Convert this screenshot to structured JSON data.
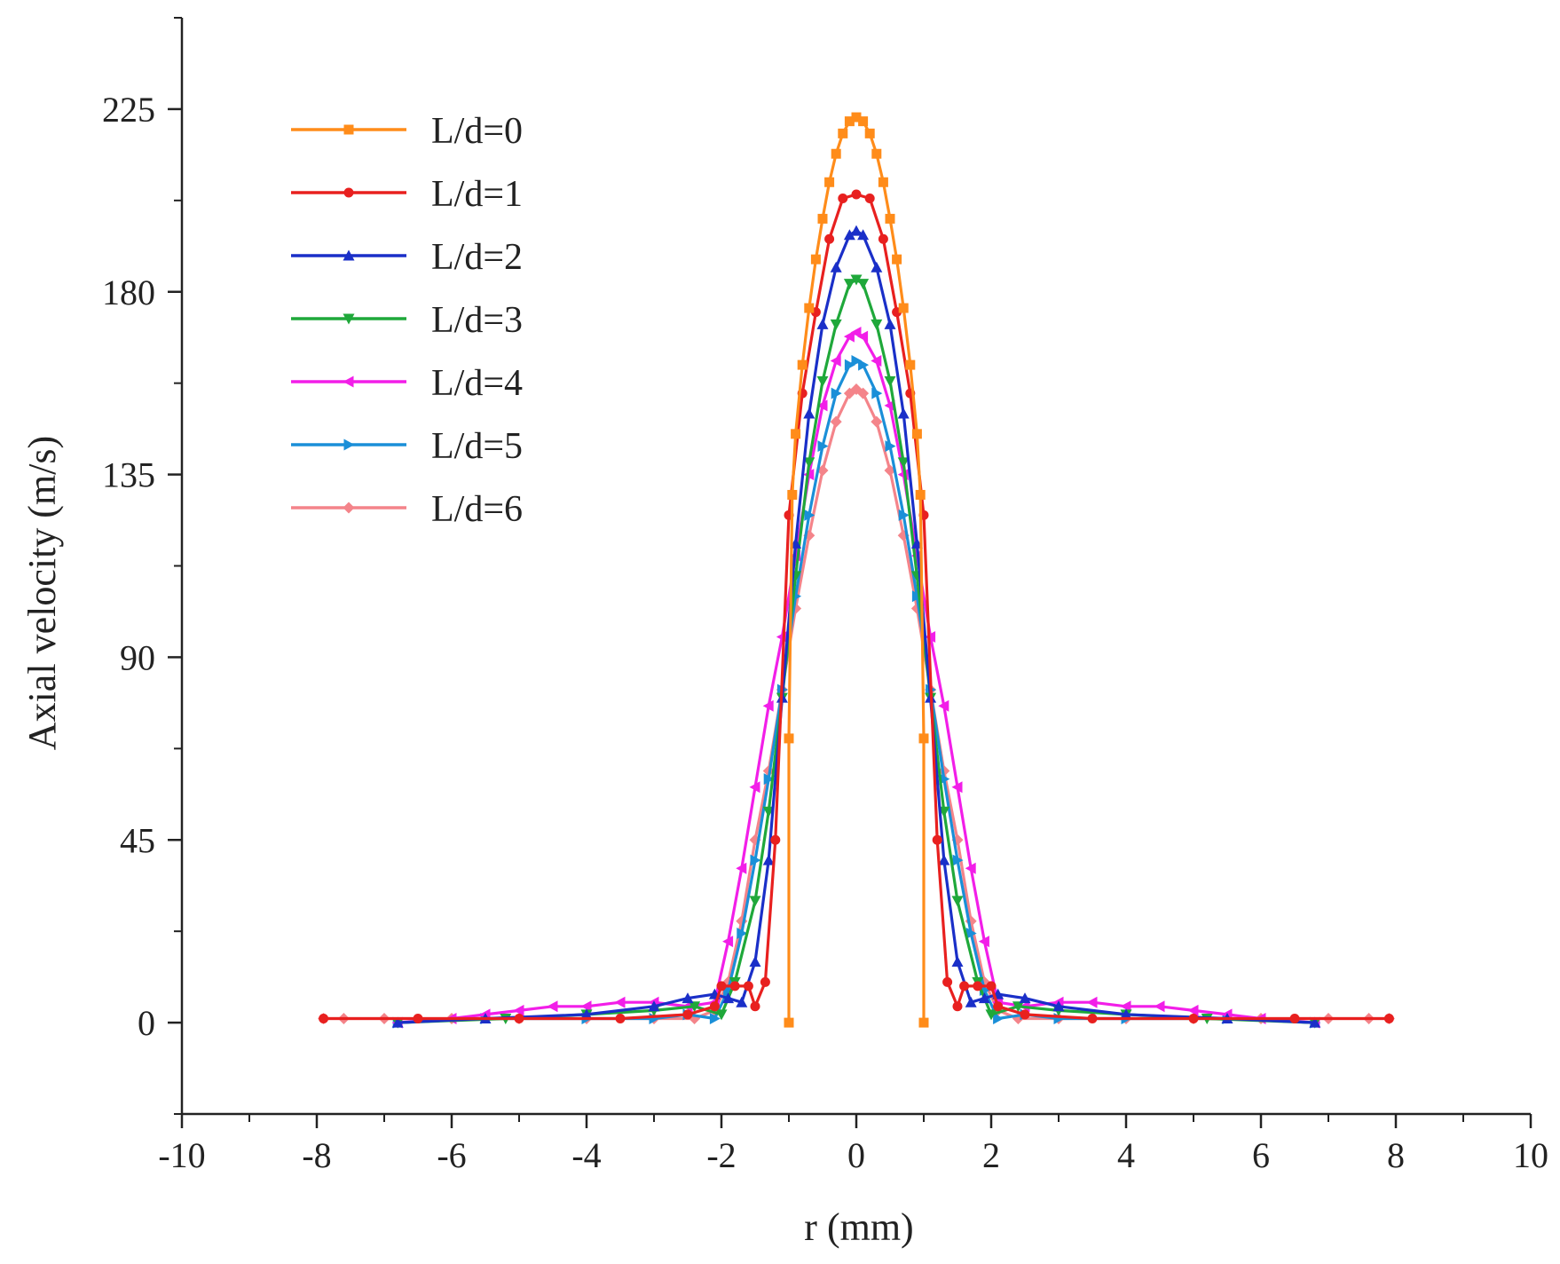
{
  "chart_data": {
    "type": "line",
    "title": "",
    "xlabel": "r (mm)",
    "ylabel": "Axial velocity (m/s)",
    "xlim": [
      -10,
      10
    ],
    "ylim": [
      -22.5,
      247.5
    ],
    "x_ticks": [
      -10,
      -8,
      -6,
      -4,
      -2,
      0,
      2,
      4,
      6,
      8,
      10
    ],
    "x_tick_labels": [
      "-10",
      "-8",
      "-6",
      "-4",
      "-2",
      "0",
      "2",
      "4",
      "6",
      "8",
      "10"
    ],
    "y_ticks": [
      0,
      45,
      90,
      135,
      180,
      225
    ],
    "y_tick_labels": [
      "0",
      "45",
      "90",
      "135",
      "180",
      "225"
    ],
    "grid": false,
    "legend_position": "top-left",
    "series": [
      {
        "name": "L/d=0",
        "color": "#ff8c1a",
        "marker": "square",
        "points": [
          [
            -1.0,
            0
          ],
          [
            -1.0,
            70
          ],
          [
            -0.95,
            130
          ],
          [
            -0.9,
            145
          ],
          [
            -0.8,
            162
          ],
          [
            -0.7,
            176
          ],
          [
            -0.6,
            188
          ],
          [
            -0.5,
            198
          ],
          [
            -0.4,
            207
          ],
          [
            -0.3,
            214
          ],
          [
            -0.2,
            219
          ],
          [
            -0.1,
            222
          ],
          [
            0,
            223
          ],
          [
            0.1,
            222
          ],
          [
            0.2,
            219
          ],
          [
            0.3,
            214
          ],
          [
            0.4,
            207
          ],
          [
            0.5,
            198
          ],
          [
            0.6,
            188
          ],
          [
            0.7,
            176
          ],
          [
            0.8,
            162
          ],
          [
            0.9,
            145
          ],
          [
            0.95,
            130
          ],
          [
            1.0,
            70
          ],
          [
            1.0,
            0
          ]
        ]
      },
      {
        "name": "L/d=1",
        "color": "#e8201f",
        "marker": "circle",
        "points": [
          [
            -7.9,
            1
          ],
          [
            -6.5,
            1
          ],
          [
            -5,
            1
          ],
          [
            -3.5,
            1
          ],
          [
            -2.5,
            2
          ],
          [
            -2.1,
            4
          ],
          [
            -2.0,
            9
          ],
          [
            -1.8,
            9
          ],
          [
            -1.6,
            9
          ],
          [
            -1.5,
            4
          ],
          [
            -1.35,
            10
          ],
          [
            -1.2,
            45
          ],
          [
            -1.0,
            125
          ],
          [
            -0.8,
            155
          ],
          [
            -0.6,
            175
          ],
          [
            -0.4,
            193
          ],
          [
            -0.2,
            203
          ],
          [
            0,
            204
          ],
          [
            0.2,
            203
          ],
          [
            0.4,
            193
          ],
          [
            0.6,
            175
          ],
          [
            0.8,
            155
          ],
          [
            1.0,
            125
          ],
          [
            1.2,
            45
          ],
          [
            1.35,
            10
          ],
          [
            1.5,
            4
          ],
          [
            1.6,
            9
          ],
          [
            1.8,
            9
          ],
          [
            2.0,
            9
          ],
          [
            2.1,
            4
          ],
          [
            2.5,
            2
          ],
          [
            3.5,
            1
          ],
          [
            5,
            1
          ],
          [
            6.5,
            1
          ],
          [
            7.9,
            1
          ]
        ]
      },
      {
        "name": "L/d=2",
        "color": "#1a2fc8",
        "marker": "triangle-up",
        "points": [
          [
            -6.8,
            0
          ],
          [
            -5.5,
            1
          ],
          [
            -4,
            2
          ],
          [
            -3,
            4
          ],
          [
            -2.5,
            6
          ],
          [
            -2.1,
            7
          ],
          [
            -1.9,
            6
          ],
          [
            -1.7,
            5
          ],
          [
            -1.5,
            15
          ],
          [
            -1.3,
            40
          ],
          [
            -1.1,
            80
          ],
          [
            -0.9,
            118
          ],
          [
            -0.7,
            150
          ],
          [
            -0.5,
            172
          ],
          [
            -0.3,
            186
          ],
          [
            -0.1,
            194
          ],
          [
            0,
            195
          ],
          [
            0.1,
            194
          ],
          [
            0.3,
            186
          ],
          [
            0.5,
            172
          ],
          [
            0.7,
            150
          ],
          [
            0.9,
            118
          ],
          [
            1.1,
            80
          ],
          [
            1.3,
            40
          ],
          [
            1.5,
            15
          ],
          [
            1.7,
            5
          ],
          [
            1.9,
            6
          ],
          [
            2.1,
            7
          ],
          [
            2.5,
            6
          ],
          [
            3,
            4
          ],
          [
            4,
            2
          ],
          [
            5.5,
            1
          ],
          [
            6.8,
            0
          ]
        ]
      },
      {
        "name": "L/d=3",
        "color": "#1fa83a",
        "marker": "triangle-down",
        "points": [
          [
            -6.8,
            0
          ],
          [
            -5.2,
            1
          ],
          [
            -4,
            2
          ],
          [
            -3,
            3
          ],
          [
            -2.4,
            4
          ],
          [
            -2.0,
            2
          ],
          [
            -1.8,
            10
          ],
          [
            -1.5,
            30
          ],
          [
            -1.3,
            52
          ],
          [
            -1.1,
            80
          ],
          [
            -0.9,
            110
          ],
          [
            -0.7,
            138
          ],
          [
            -0.5,
            158
          ],
          [
            -0.3,
            172
          ],
          [
            -0.1,
            182
          ],
          [
            0,
            183
          ],
          [
            0.1,
            182
          ],
          [
            0.3,
            172
          ],
          [
            0.5,
            158
          ],
          [
            0.7,
            138
          ],
          [
            0.9,
            110
          ],
          [
            1.1,
            80
          ],
          [
            1.3,
            52
          ],
          [
            1.5,
            30
          ],
          [
            1.8,
            10
          ],
          [
            2.0,
            2
          ],
          [
            2.4,
            4
          ],
          [
            3,
            3
          ],
          [
            4,
            2
          ],
          [
            5.2,
            1
          ],
          [
            6.8,
            0
          ]
        ]
      },
      {
        "name": "L/d=4",
        "color": "#f21ee8",
        "marker": "triangle-left",
        "points": [
          [
            -6.8,
            0
          ],
          [
            -6,
            1
          ],
          [
            -5.5,
            2
          ],
          [
            -5,
            3
          ],
          [
            -4.5,
            4
          ],
          [
            -4,
            4
          ],
          [
            -3.5,
            5
          ],
          [
            -3,
            5
          ],
          [
            -2.5,
            4
          ],
          [
            -2.1,
            5
          ],
          [
            -1.9,
            20
          ],
          [
            -1.7,
            38
          ],
          [
            -1.5,
            58
          ],
          [
            -1.3,
            78
          ],
          [
            -1.1,
            95
          ],
          [
            -0.9,
            115
          ],
          [
            -0.7,
            135
          ],
          [
            -0.5,
            152
          ],
          [
            -0.3,
            163
          ],
          [
            -0.1,
            169
          ],
          [
            0,
            170
          ],
          [
            0.1,
            169
          ],
          [
            0.3,
            163
          ],
          [
            0.5,
            152
          ],
          [
            0.7,
            135
          ],
          [
            0.9,
            115
          ],
          [
            1.1,
            95
          ],
          [
            1.3,
            78
          ],
          [
            1.5,
            58
          ],
          [
            1.7,
            38
          ],
          [
            1.9,
            20
          ],
          [
            2.1,
            5
          ],
          [
            2.5,
            4
          ],
          [
            3,
            5
          ],
          [
            3.5,
            5
          ],
          [
            4,
            4
          ],
          [
            4.5,
            4
          ],
          [
            5,
            3
          ],
          [
            5.5,
            2
          ],
          [
            6,
            1
          ],
          [
            6.8,
            0
          ]
        ]
      },
      {
        "name": "L/d=5",
        "color": "#1a8fd8",
        "marker": "triangle-right",
        "points": [
          [
            -6.8,
            0
          ],
          [
            -5.5,
            1
          ],
          [
            -4,
            1
          ],
          [
            -3,
            1
          ],
          [
            -2.5,
            2
          ],
          [
            -2.1,
            1
          ],
          [
            -1.9,
            8
          ],
          [
            -1.7,
            22
          ],
          [
            -1.5,
            40
          ],
          [
            -1.3,
            60
          ],
          [
            -1.1,
            82
          ],
          [
            -0.9,
            105
          ],
          [
            -0.7,
            125
          ],
          [
            -0.5,
            142
          ],
          [
            -0.3,
            155
          ],
          [
            -0.1,
            162
          ],
          [
            0,
            163
          ],
          [
            0.1,
            162
          ],
          [
            0.3,
            155
          ],
          [
            0.5,
            142
          ],
          [
            0.7,
            125
          ],
          [
            0.9,
            105
          ],
          [
            1.1,
            82
          ],
          [
            1.3,
            60
          ],
          [
            1.5,
            40
          ],
          [
            1.7,
            22
          ],
          [
            1.9,
            8
          ],
          [
            2.1,
            1
          ],
          [
            2.5,
            2
          ],
          [
            3,
            1
          ],
          [
            4,
            1
          ],
          [
            5.5,
            1
          ],
          [
            6.8,
            0
          ]
        ]
      },
      {
        "name": "L/d=6",
        "color": "#f4848a",
        "marker": "diamond",
        "points": [
          [
            -7.9,
            1
          ],
          [
            -7.6,
            1
          ],
          [
            -7,
            1
          ],
          [
            -6,
            1
          ],
          [
            -5,
            1
          ],
          [
            -4,
            1
          ],
          [
            -3,
            1
          ],
          [
            -2.4,
            1
          ],
          [
            -2.1,
            3
          ],
          [
            -1.9,
            10
          ],
          [
            -1.7,
            25
          ],
          [
            -1.5,
            45
          ],
          [
            -1.3,
            62
          ],
          [
            -1.1,
            82
          ],
          [
            -0.9,
            102
          ],
          [
            -0.7,
            120
          ],
          [
            -0.5,
            136
          ],
          [
            -0.3,
            148
          ],
          [
            -0.1,
            155
          ],
          [
            0,
            156
          ],
          [
            0.1,
            155
          ],
          [
            0.3,
            148
          ],
          [
            0.5,
            136
          ],
          [
            0.7,
            120
          ],
          [
            0.9,
            102
          ],
          [
            1.1,
            82
          ],
          [
            1.3,
            62
          ],
          [
            1.5,
            45
          ],
          [
            1.7,
            25
          ],
          [
            1.9,
            10
          ],
          [
            2.1,
            3
          ],
          [
            2.4,
            1
          ],
          [
            3,
            1
          ],
          [
            4,
            1
          ],
          [
            5,
            1
          ],
          [
            6,
            1
          ],
          [
            7,
            1
          ],
          [
            7.6,
            1
          ],
          [
            7.9,
            1
          ]
        ]
      }
    ]
  }
}
